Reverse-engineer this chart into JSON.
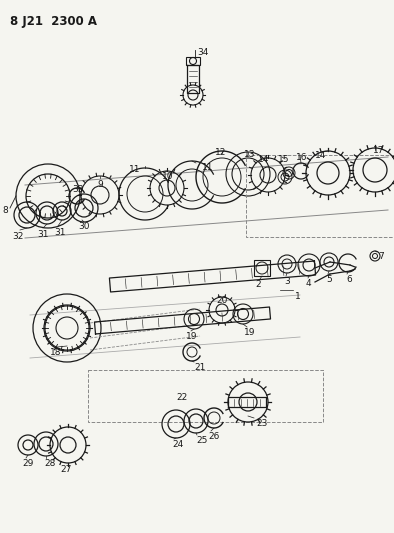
{
  "title": "8 J21  2300 A",
  "bg": "#f5f5f0",
  "lc": "#1a1a1a",
  "figsize": [
    3.94,
    5.33
  ],
  "dpi": 100
}
